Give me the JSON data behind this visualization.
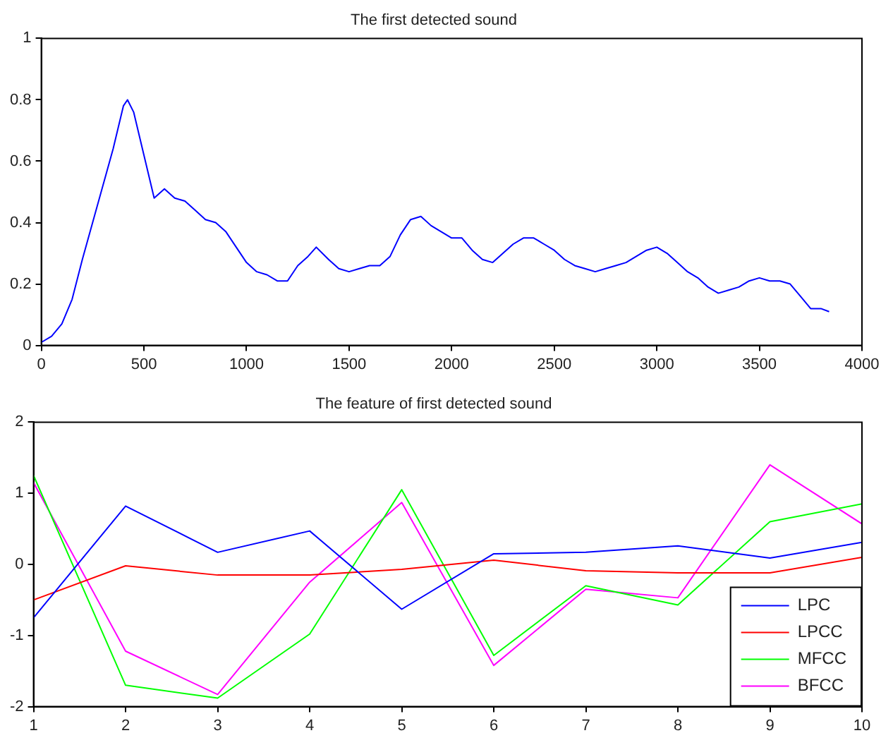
{
  "chart_data": [
    {
      "type": "line",
      "title": "The first detected sound",
      "x": [
        0,
        50,
        100,
        150,
        200,
        250,
        300,
        350,
        400,
        420,
        450,
        500,
        550,
        600,
        650,
        700,
        750,
        800,
        850,
        900,
        950,
        1000,
        1050,
        1100,
        1150,
        1200,
        1250,
        1300,
        1340,
        1400,
        1450,
        1500,
        1550,
        1600,
        1650,
        1700,
        1750,
        1800,
        1850,
        1900,
        1950,
        2000,
        2050,
        2100,
        2150,
        2200,
        2250,
        2300,
        2350,
        2400,
        2450,
        2500,
        2550,
        2600,
        2650,
        2700,
        2750,
        2800,
        2850,
        2900,
        2950,
        3000,
        3050,
        3100,
        3150,
        3200,
        3250,
        3300,
        3350,
        3400,
        3450,
        3500,
        3550,
        3600,
        3650,
        3700,
        3750,
        3800,
        3840
      ],
      "series": [
        {
          "color": "#0000ff",
          "values": [
            0.01,
            0.03,
            0.07,
            0.15,
            0.28,
            0.4,
            0.52,
            0.64,
            0.78,
            0.8,
            0.76,
            0.62,
            0.48,
            0.51,
            0.48,
            0.47,
            0.44,
            0.41,
            0.4,
            0.37,
            0.32,
            0.27,
            0.24,
            0.23,
            0.21,
            0.21,
            0.26,
            0.29,
            0.32,
            0.28,
            0.25,
            0.24,
            0.25,
            0.26,
            0.26,
            0.29,
            0.36,
            0.41,
            0.42,
            0.39,
            0.37,
            0.35,
            0.35,
            0.31,
            0.28,
            0.27,
            0.3,
            0.33,
            0.35,
            0.35,
            0.33,
            0.31,
            0.28,
            0.26,
            0.25,
            0.24,
            0.25,
            0.26,
            0.27,
            0.29,
            0.31,
            0.32,
            0.3,
            0.27,
            0.24,
            0.22,
            0.19,
            0.17,
            0.18,
            0.19,
            0.21,
            0.22,
            0.21,
            0.21,
            0.2,
            0.16,
            0.12,
            0.12,
            0.11
          ]
        }
      ],
      "xlim": [
        0,
        4000
      ],
      "xticks": [
        0,
        500,
        1000,
        1500,
        2000,
        2500,
        3000,
        3500,
        4000
      ],
      "ylim": [
        0,
        1
      ],
      "yticks": [
        0,
        0.2,
        0.4,
        0.6,
        0.8,
        1
      ],
      "grid": false,
      "legend": false
    },
    {
      "type": "line",
      "title": "The feature of first detected sound",
      "x": [
        1,
        2,
        3,
        4,
        5,
        6,
        7,
        8,
        9,
        10
      ],
      "series": [
        {
          "name": "LPC",
          "color": "#0000ff",
          "values": [
            -0.75,
            0.82,
            0.17,
            0.47,
            -0.63,
            0.15,
            0.17,
            0.26,
            0.09,
            0.31
          ]
        },
        {
          "name": "LPCC",
          "color": "#ff0000",
          "values": [
            -0.5,
            -0.02,
            -0.15,
            -0.15,
            -0.07,
            0.06,
            -0.09,
            -0.12,
            -0.12,
            0.1
          ]
        },
        {
          "name": "MFCC",
          "color": "#00ff00",
          "values": [
            1.25,
            -1.7,
            -1.88,
            -0.98,
            1.05,
            -1.28,
            -0.3,
            -0.57,
            0.6,
            0.85
          ]
        },
        {
          "name": "BFCC",
          "color": "#ff00ff",
          "values": [
            1.15,
            -1.22,
            -1.83,
            -0.25,
            0.87,
            -1.42,
            -0.35,
            -0.47,
            1.4,
            0.57
          ]
        }
      ],
      "xlim": [
        1,
        10
      ],
      "xticks": [
        1,
        2,
        3,
        4,
        5,
        6,
        7,
        8,
        9,
        10
      ],
      "ylim": [
        -2,
        2
      ],
      "yticks": [
        -2,
        -1,
        0,
        1,
        2
      ],
      "grid": false,
      "legend": "bottom right"
    }
  ]
}
